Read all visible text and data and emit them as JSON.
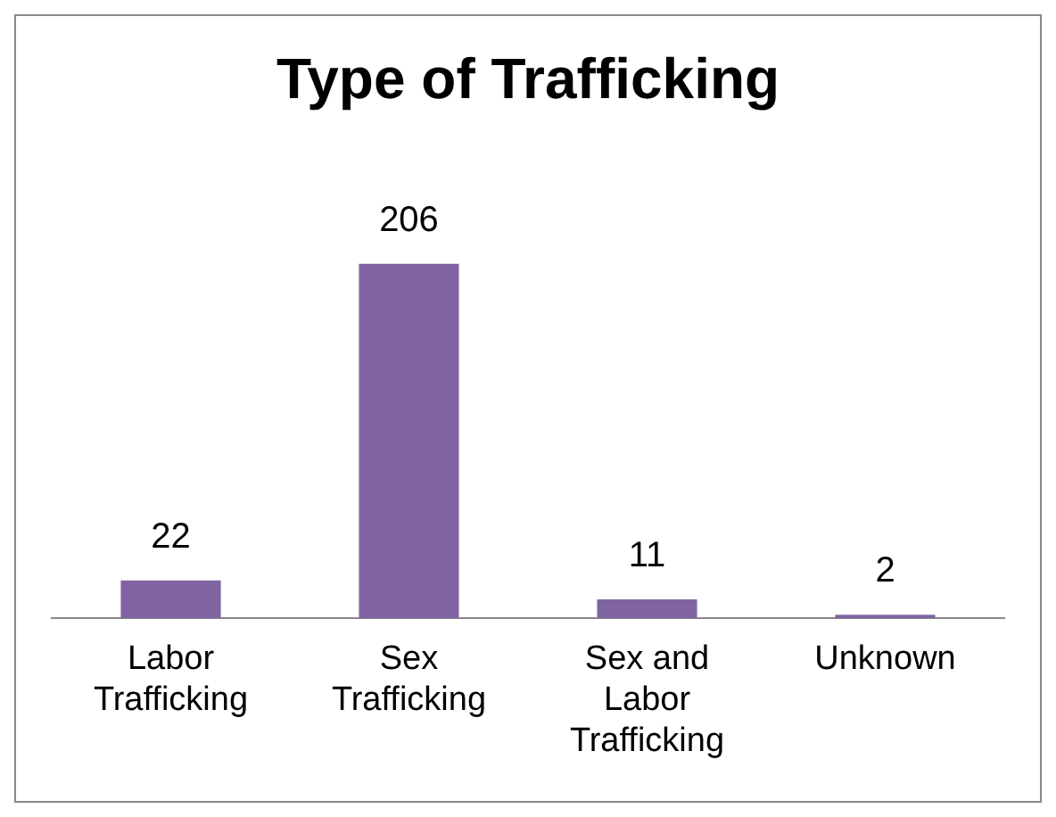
{
  "chart_data": {
    "type": "bar",
    "title": "Type of Trafficking",
    "categories": [
      "Labor Trafficking",
      "Sex Trafficking",
      "Sex and Labor Trafficking",
      "Unknown"
    ],
    "values": [
      22,
      206,
      11,
      2
    ],
    "color": "#8064a2",
    "data_labels": true,
    "grid": false,
    "legend": false
  }
}
